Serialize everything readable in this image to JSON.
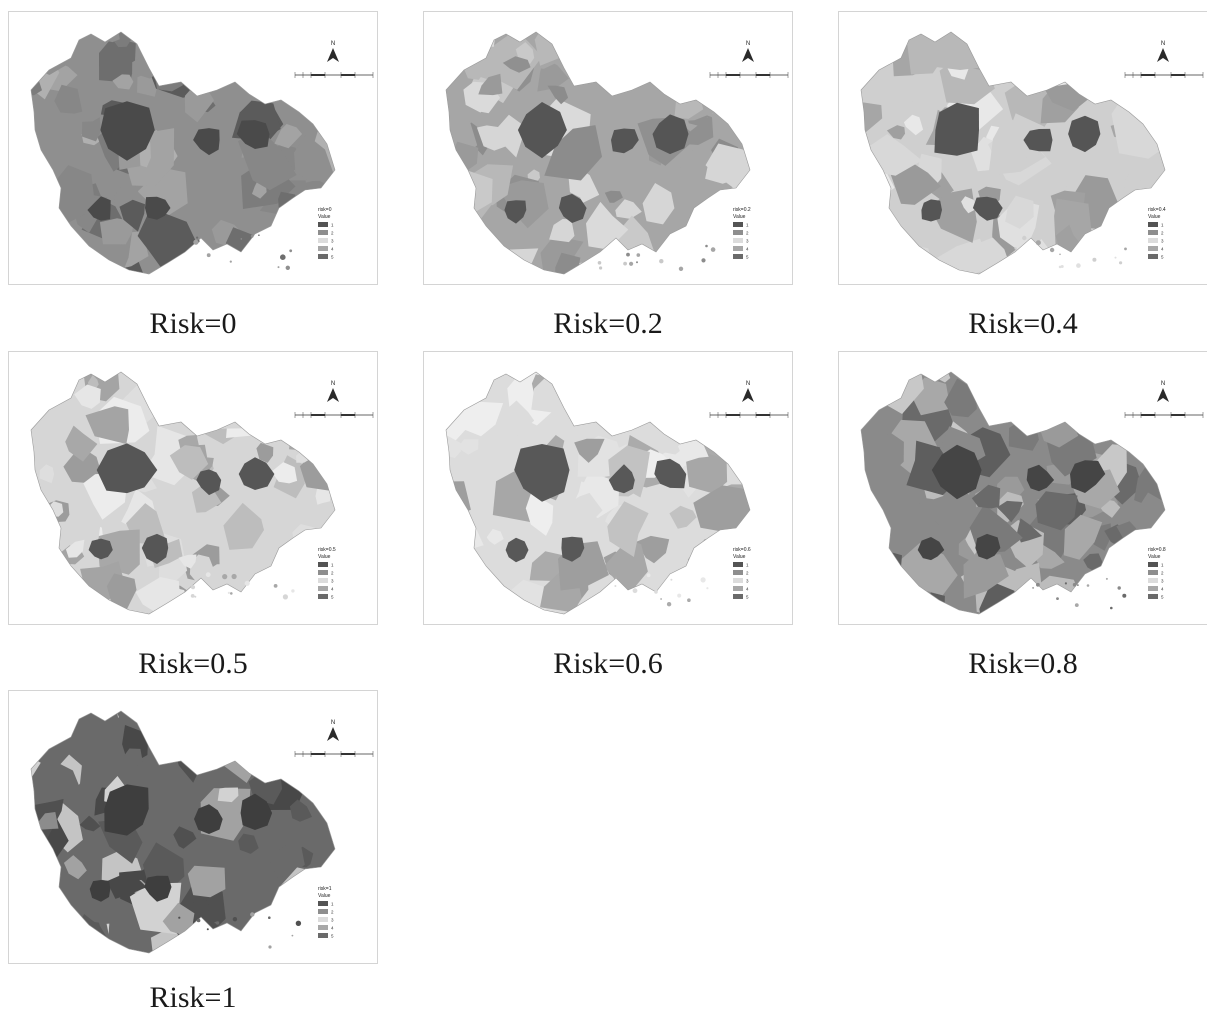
{
  "legend": {
    "field_label": "Value",
    "classes": [
      "1",
      "2",
      "3",
      "4",
      "5"
    ],
    "class_colors": [
      "#545454",
      "#8e8e8e",
      "#dcdcdc",
      "#a8a8a8",
      "#6a6a6a"
    ]
  },
  "north_arrow": {
    "letter": "N",
    "icon": "north-arrow-icon"
  },
  "scale_bar": {
    "icon": "scale-bar-icon"
  },
  "maps": [
    {
      "id": "risk-0",
      "caption": "Risk=0",
      "legend_title": "risk=0",
      "fills": [
        "#8f8f8f",
        "#6e6e6e",
        "#a3a3a3",
        "#9a9a9a",
        "#5b5b5b",
        "#878787",
        "#b0b0b0",
        "#7c7c7c"
      ],
      "dark": "#4a4a4a"
    },
    {
      "id": "risk-0.2",
      "caption": "Risk=0.2",
      "legend_title": "risk=0.2",
      "fills": [
        "#a6a6a6",
        "#c9c9c9",
        "#8c8c8c",
        "#d6d6d6",
        "#9a9a9a",
        "#b8b8b8",
        "#dadada",
        "#909090"
      ],
      "dark": "#555555"
    },
    {
      "id": "risk-0.4",
      "caption": "Risk=0.4",
      "legend_title": "risk=0.4",
      "fills": [
        "#cfcfcf",
        "#a6a6a6",
        "#e0e0e0",
        "#b8b8b8",
        "#9a9a9a",
        "#d8d8d8",
        "#e8e8e8",
        "#a0a0a0"
      ],
      "dark": "#555555"
    },
    {
      "id": "risk-0.5",
      "caption": "Risk=0.5",
      "legend_title": "risk=0.5",
      "fills": [
        "#d6d6d6",
        "#a8a8a8",
        "#e6e6e6",
        "#bdbdbd",
        "#9c9c9c",
        "#dedede",
        "#ececec",
        "#a4a4a4"
      ],
      "dark": "#565656"
    },
    {
      "id": "risk-0.6",
      "caption": "Risk=0.6",
      "legend_title": "risk=0.6",
      "fills": [
        "#dcdcdc",
        "#ababab",
        "#e8e8e8",
        "#c2c2c2",
        "#9e9e9e",
        "#e2e2e2",
        "#eeeeee",
        "#a7a7a7"
      ],
      "dark": "#585858"
    },
    {
      "id": "risk-0.8",
      "caption": "Risk=0.8",
      "legend_title": "risk=0.8",
      "fills": [
        "#8a8a8a",
        "#a8a8a8",
        "#6a6a6a",
        "#bcbcbc",
        "#7a7a7a",
        "#9a9a9a",
        "#c8c8c8",
        "#5e5e5e"
      ],
      "dark": "#454545"
    },
    {
      "id": "risk-1",
      "caption": "Risk=1",
      "legend_title": "risk=1",
      "fills": [
        "#6a6a6a",
        "#a2a2a2",
        "#505050",
        "#c4c4c4",
        "#5a5a5a",
        "#8c8c8c",
        "#d2d2d2",
        "#484848"
      ],
      "dark": "#3e3e3e"
    }
  ]
}
